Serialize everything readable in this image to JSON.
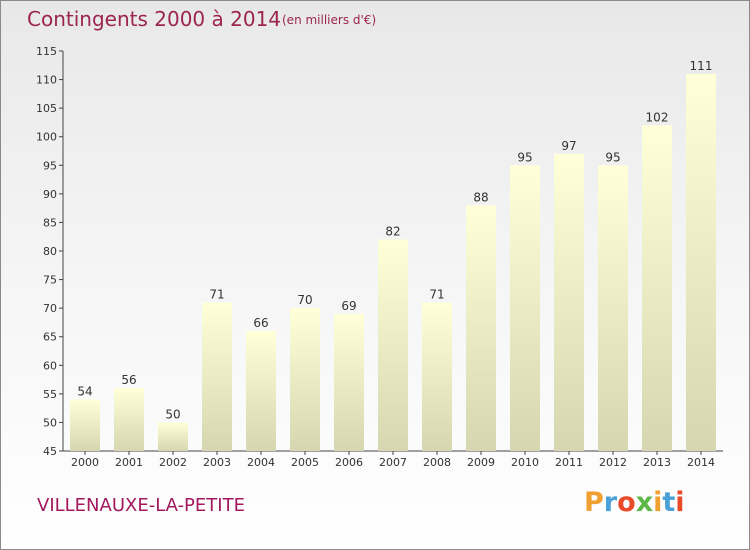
{
  "chart_data": {
    "type": "bar",
    "title": "Contingents 2000 à 2014",
    "subtitle": "(en milliers d'€)",
    "categories": [
      "2000",
      "2001",
      "2002",
      "2003",
      "2004",
      "2005",
      "2006",
      "2007",
      "2008",
      "2009",
      "2010",
      "2011",
      "2012",
      "2013",
      "2014"
    ],
    "values": [
      54,
      56,
      50,
      71,
      66,
      70,
      69,
      82,
      71,
      88,
      95,
      97,
      95,
      102,
      111
    ],
    "y_ticks": [
      45,
      50,
      55,
      60,
      65,
      70,
      75,
      80,
      85,
      90,
      95,
      100,
      105,
      110,
      115
    ],
    "ylim": [
      45,
      115
    ],
    "grid": false,
    "bar_color_top": "#ffffd8",
    "bar_color_bottom": "#d6d6b0"
  },
  "place_name": "VILLENAUXE-LA-PETITE",
  "logo": {
    "letters": [
      "P",
      "r",
      "o",
      "x",
      "i",
      "t",
      "i"
    ],
    "colors": [
      "#f0a030",
      "#4aa0d8",
      "#e84a2a",
      "#5cb848",
      "#f0a030",
      "#4aa0d8",
      "#e84a2a"
    ]
  }
}
